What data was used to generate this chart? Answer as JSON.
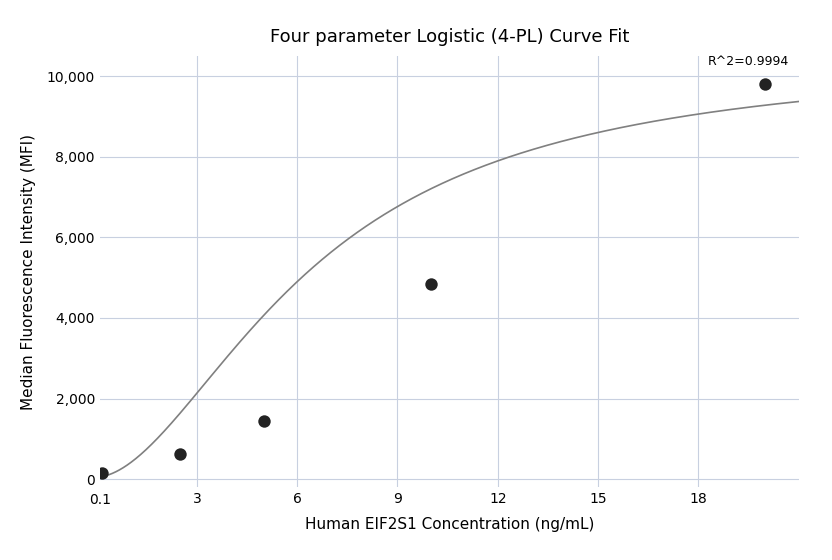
{
  "title": "Four parameter Logistic (4-PL) Curve Fit",
  "xlabel": "Human EIF2S1 Concentration (ng/mL)",
  "ylabel": "Median Fluorescence Intensity (MFI)",
  "r_squared_label": "R^2=0.9994",
  "scatter_x": [
    0.156,
    2.5,
    5.0,
    10.0,
    20.0
  ],
  "scatter_y": [
    150,
    630,
    1450,
    4830,
    9800
  ],
  "xlim": [
    0.1,
    21
  ],
  "ylim": [
    -200,
    10500
  ],
  "yticks": [
    0,
    2000,
    4000,
    6000,
    8000,
    10000
  ],
  "xticks": [
    3,
    6,
    9,
    12,
    15,
    18
  ],
  "background_color": "#ffffff",
  "grid_color": "#c8d0e0",
  "line_color": "#808080",
  "dot_color": "#222222",
  "4pl_A": 50,
  "4pl_B": 1.8,
  "4pl_C": 6.5,
  "4pl_D": 10500,
  "title_fontsize": 13,
  "label_fontsize": 11,
  "tick_fontsize": 10,
  "annotation_fontsize": 9
}
